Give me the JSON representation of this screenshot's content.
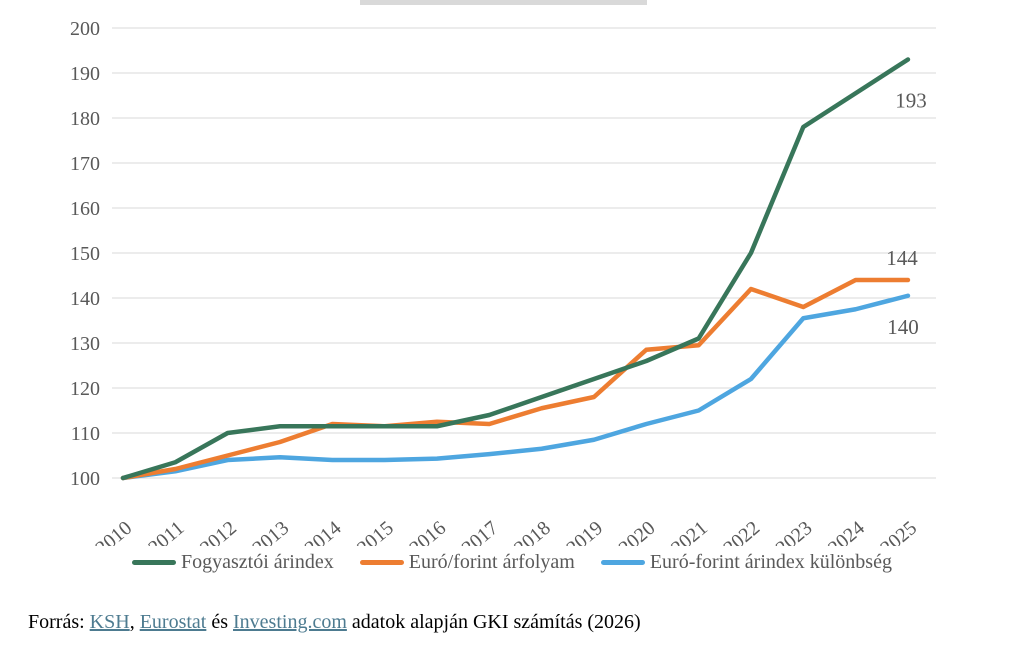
{
  "top_bar": {
    "color": "#d9d9d9"
  },
  "chart_data": {
    "type": "line",
    "title": "",
    "xlabel": "",
    "ylabel": "",
    "x": [
      2010,
      2011,
      2012,
      2013,
      2014,
      2015,
      2016,
      2017,
      2018,
      2019,
      2020,
      2021,
      2022,
      2023,
      2024,
      2025
    ],
    "series": [
      {
        "name": "Fogyasztói árindex",
        "color": "#38765a",
        "values": [
          100,
          103.5,
          110,
          111.5,
          111.5,
          111.5,
          111.5,
          114,
          118,
          122,
          126,
          131,
          150,
          178,
          185.5,
          193
        ],
        "end_label": "193"
      },
      {
        "name": "Euró/forint árfolyam",
        "color": "#ed7d31",
        "values": [
          100,
          102,
          105,
          108,
          112,
          111.5,
          112.5,
          112,
          115.5,
          118,
          128.5,
          129.5,
          142,
          138,
          144,
          144
        ],
        "end_label": "144"
      },
      {
        "name": "Euró-forint árindex különbség",
        "color": "#4ea6e0",
        "values": [
          100,
          101.5,
          104,
          104.6,
          104,
          104,
          104.3,
          105.3,
          106.5,
          108.5,
          112,
          115,
          122,
          135.5,
          137.5,
          140.5
        ],
        "end_label": "140"
      }
    ],
    "ylim": [
      100,
      200
    ],
    "yticks": [
      100,
      110,
      120,
      130,
      140,
      150,
      160,
      170,
      180,
      190,
      200
    ],
    "grid": true,
    "legend_position": "bottom",
    "axis_label_color": "#595959",
    "gridline_color": "#e0e0e0"
  },
  "footer": {
    "prefix": "Forrás: ",
    "links": [
      "KSH",
      "Eurostat",
      "Investing.com"
    ],
    "sep1": ", ",
    "sep2": " és ",
    "sep3": " ",
    "suffix": "adatok alapján GKI számítás (2026)",
    "link_color": "#4d7b90"
  }
}
